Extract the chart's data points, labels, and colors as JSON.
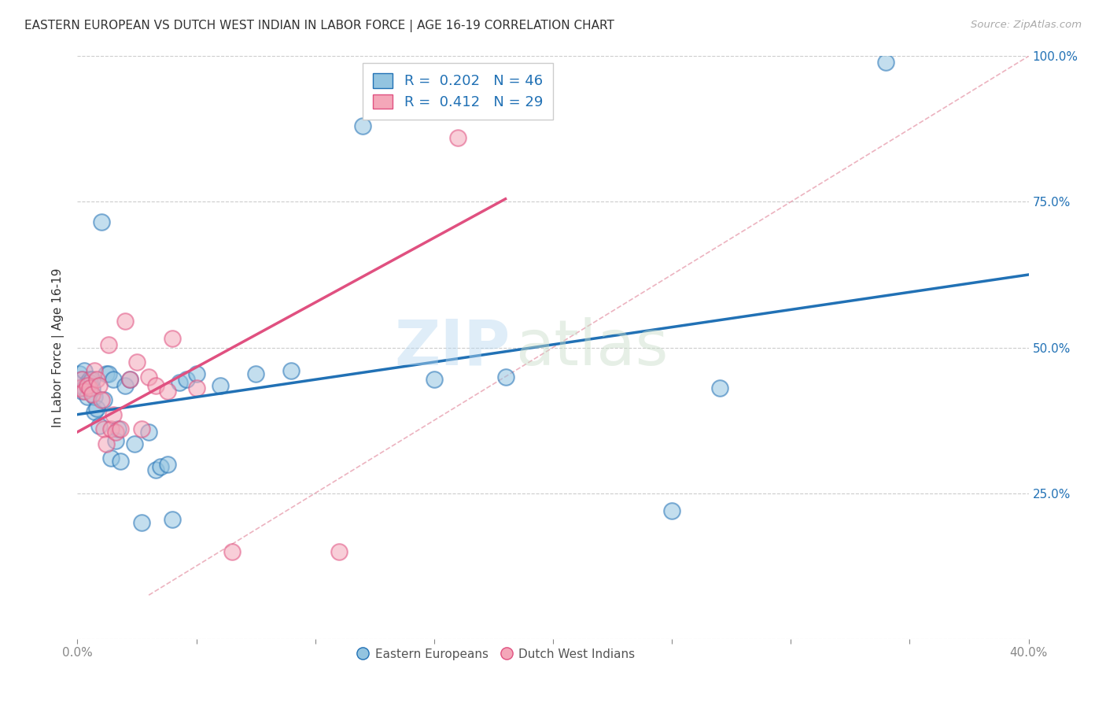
{
  "title": "EASTERN EUROPEAN VS DUTCH WEST INDIAN IN LABOR FORCE | AGE 16-19 CORRELATION CHART",
  "source_text": "Source: ZipAtlas.com",
  "ylabel": "In Labor Force | Age 16-19",
  "xlim": [
    0.0,
    0.4
  ],
  "ylim": [
    0.0,
    1.0
  ],
  "blue_color": "#93c4e0",
  "pink_color": "#f4a7b9",
  "blue_line_color": "#2171b5",
  "pink_line_color": "#e05080",
  "diag_line_color": "#e8a0b0",
  "r_blue": 0.202,
  "n_blue": 46,
  "r_pink": 0.412,
  "n_pink": 29,
  "watermark_zip": "ZIP",
  "watermark_atlas": "atlas",
  "legend_label_blue": "Eastern Europeans",
  "legend_label_pink": "Dutch West Indians",
  "blue_x": [
    0.001,
    0.001,
    0.002,
    0.002,
    0.003,
    0.003,
    0.004,
    0.004,
    0.005,
    0.005,
    0.006,
    0.006,
    0.007,
    0.007,
    0.008,
    0.009,
    0.01,
    0.011,
    0.012,
    0.013,
    0.014,
    0.015,
    0.016,
    0.017,
    0.018,
    0.02,
    0.022,
    0.024,
    0.027,
    0.03,
    0.033,
    0.035,
    0.038,
    0.04,
    0.043,
    0.046,
    0.05,
    0.06,
    0.075,
    0.09,
    0.12,
    0.15,
    0.18,
    0.25,
    0.27,
    0.34
  ],
  "blue_y": [
    0.455,
    0.43,
    0.445,
    0.425,
    0.43,
    0.46,
    0.44,
    0.415,
    0.445,
    0.44,
    0.43,
    0.445,
    0.39,
    0.415,
    0.395,
    0.365,
    0.715,
    0.41,
    0.455,
    0.455,
    0.31,
    0.445,
    0.34,
    0.36,
    0.305,
    0.435,
    0.445,
    0.335,
    0.2,
    0.355,
    0.29,
    0.295,
    0.3,
    0.205,
    0.44,
    0.445,
    0.455,
    0.435,
    0.455,
    0.46,
    0.88,
    0.445,
    0.45,
    0.22,
    0.43,
    0.99
  ],
  "pink_x": [
    0.001,
    0.002,
    0.003,
    0.004,
    0.005,
    0.006,
    0.007,
    0.008,
    0.009,
    0.01,
    0.011,
    0.012,
    0.013,
    0.014,
    0.015,
    0.016,
    0.018,
    0.02,
    0.022,
    0.025,
    0.027,
    0.03,
    0.033,
    0.038,
    0.04,
    0.05,
    0.065,
    0.11,
    0.16
  ],
  "pink_y": [
    0.43,
    0.445,
    0.425,
    0.435,
    0.43,
    0.42,
    0.46,
    0.445,
    0.435,
    0.41,
    0.36,
    0.335,
    0.505,
    0.36,
    0.385,
    0.355,
    0.36,
    0.545,
    0.445,
    0.475,
    0.36,
    0.45,
    0.435,
    0.425,
    0.515,
    0.43,
    0.15,
    0.15,
    0.86
  ],
  "blue_trend_x0": 0.0,
  "blue_trend_y0": 0.385,
  "blue_trend_x1": 0.4,
  "blue_trend_y1": 0.625,
  "pink_trend_x0": 0.0,
  "pink_trend_y0": 0.355,
  "pink_trend_x1": 0.18,
  "pink_trend_y1": 0.755
}
